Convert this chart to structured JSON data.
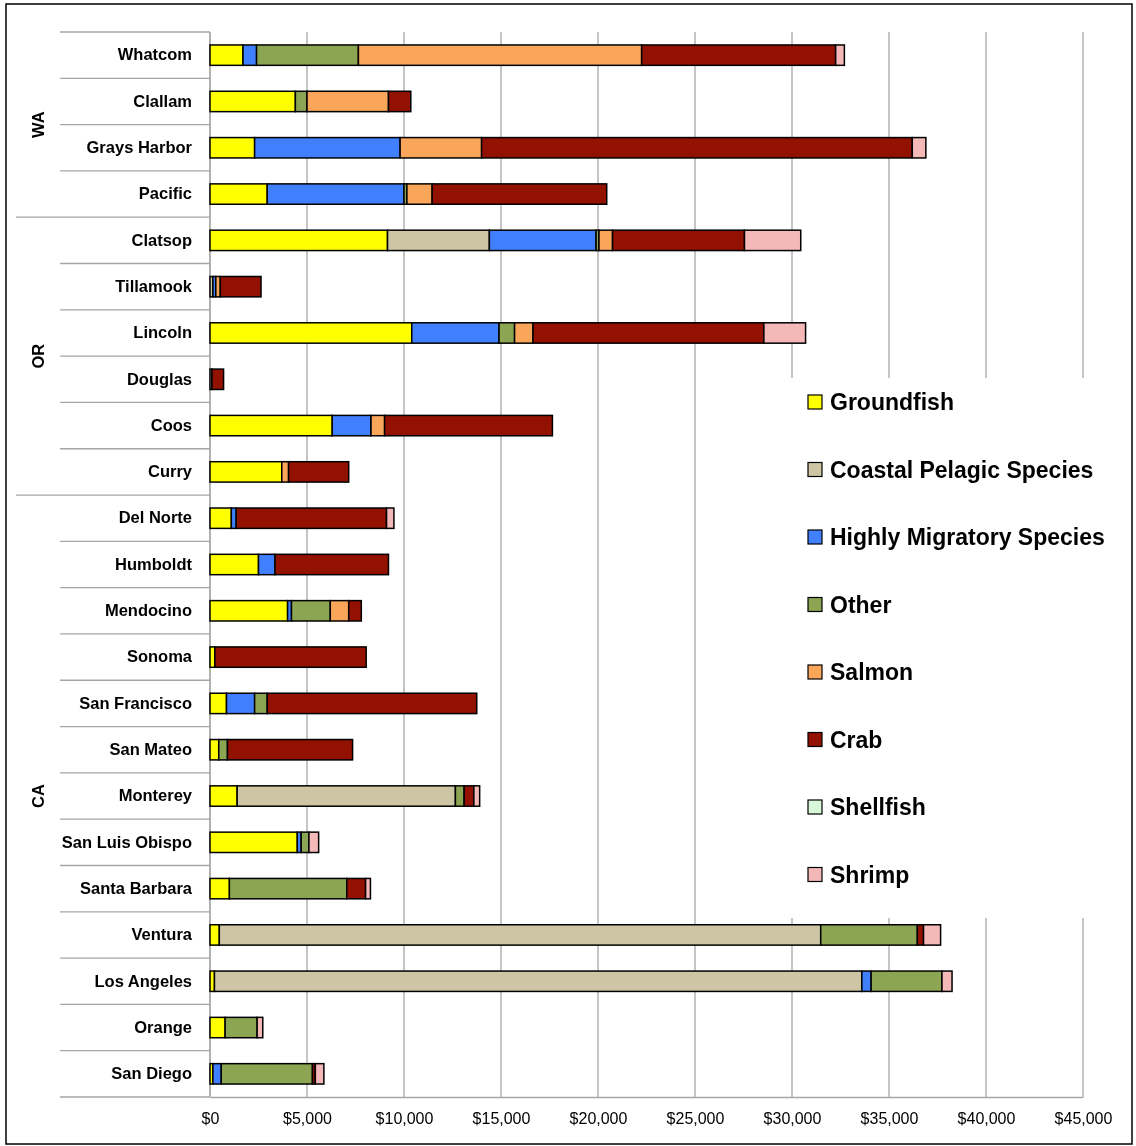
{
  "chart_data": {
    "type": "bar",
    "orientation": "horizontal",
    "stacked": true,
    "categories": [
      "Whatcom",
      "Clallam",
      "Grays Harbor",
      "Pacific",
      "Clatsop",
      "Tillamook",
      "Lincoln",
      "Douglas",
      "Coos",
      "Curry",
      "Del Norte",
      "Humboldt",
      "Mendocino",
      "Sonoma",
      "San Francisco",
      "San Mateo",
      "Monterey",
      "San Luis Obispo",
      "Santa Barbara",
      "Ventura",
      "Los Angeles",
      "Orange",
      "San Diego"
    ],
    "series": [
      {
        "name": "Groundfish",
        "color": "#ffff00",
        "values": [
          1700,
          4400,
          2300,
          2950,
          9150,
          0,
          10400,
          0,
          6300,
          3700,
          1100,
          2500,
          4000,
          250,
          850,
          450,
          1400,
          4500,
          1000,
          480,
          230,
          780,
          150
        ]
      },
      {
        "name": "Coastal Pelagic Species",
        "color": "#cdc5a3",
        "values": [
          0,
          0,
          0,
          0,
          5250,
          150,
          0,
          100,
          0,
          0,
          0,
          0,
          0,
          0,
          0,
          0,
          11250,
          0,
          0,
          31000,
          33370,
          0,
          0
        ]
      },
      {
        "name": "Highly Migratory Species",
        "color": "#4080ff",
        "values": [
          700,
          0,
          7500,
          7050,
          5500,
          150,
          4500,
          0,
          2000,
          0,
          250,
          850,
          200,
          0,
          1450,
          0,
          0,
          200,
          0,
          0,
          480,
          0,
          430
        ]
      },
      {
        "name": "Other",
        "color": "#8ca552",
        "values": [
          5250,
          600,
          0,
          150,
          150,
          0,
          800,
          0,
          0,
          0,
          0,
          0,
          2000,
          0,
          650,
          450,
          450,
          400,
          6050,
          4980,
          3650,
          1650,
          4700
        ]
      },
      {
        "name": "Salmon",
        "color": "#f9a65a",
        "values": [
          14600,
          4200,
          4200,
          1300,
          700,
          230,
          950,
          0,
          700,
          350,
          0,
          0,
          950,
          0,
          0,
          0,
          0,
          0,
          0,
          0,
          0,
          0,
          0
        ]
      },
      {
        "name": "Crab",
        "color": "#921100",
        "values": [
          10000,
          1150,
          22200,
          9000,
          6800,
          2100,
          11900,
          600,
          8650,
          3100,
          7750,
          5850,
          650,
          7800,
          10800,
          6450,
          500,
          0,
          970,
          320,
          0,
          0,
          150
        ]
      },
      {
        "name": "Shellfish",
        "color": "#d9f7d9",
        "values": [
          0,
          0,
          0,
          0,
          0,
          0,
          0,
          0,
          0,
          0,
          0,
          0,
          0,
          0,
          0,
          0,
          0,
          0,
          0,
          0,
          0,
          0,
          0
        ]
      },
      {
        "name": "Shrimp",
        "color": "#f4b8b8",
        "values": [
          450,
          0,
          700,
          0,
          2900,
          0,
          2150,
          0,
          0,
          0,
          380,
          0,
          0,
          0,
          0,
          0,
          300,
          500,
          250,
          880,
          520,
          290,
          440
        ]
      }
    ],
    "xlim": [
      0,
      45000
    ],
    "xticks": [
      {
        "value": 0,
        "label": "$0"
      },
      {
        "value": 5000,
        "label": "$5,000"
      },
      {
        "value": 10000,
        "label": "$10,000"
      },
      {
        "value": 15000,
        "label": "$15,000"
      },
      {
        "value": 20000,
        "label": "$20,000"
      },
      {
        "value": 25000,
        "label": "$25,000"
      },
      {
        "value": 30000,
        "label": "$30,000"
      },
      {
        "value": 35000,
        "label": "$35,000"
      },
      {
        "value": 40000,
        "label": "$40,000"
      },
      {
        "value": 45000,
        "label": "$45,000"
      }
    ],
    "grid": "x",
    "legend": "right",
    "annotations": [
      "WA",
      "OR",
      "CA"
    ]
  }
}
